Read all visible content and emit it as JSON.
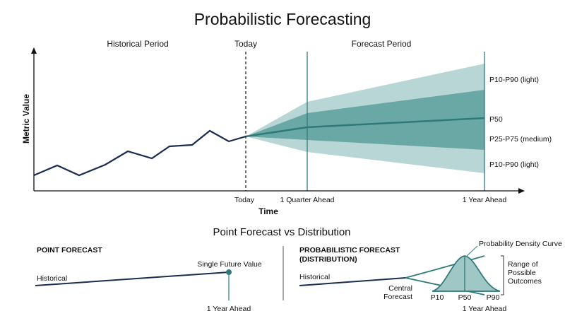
{
  "title": "Probabilistic Forecasting",
  "main_chart": {
    "section_labels": {
      "historical": "Historical Period",
      "today": "Today",
      "forecast": "Forecast Period"
    },
    "y_axis_label": "Metric Value",
    "x_axis_label": "Time",
    "x_ticks": [
      "Today",
      "1 Quarter Ahead",
      "1 Year Ahead"
    ],
    "band_labels": {
      "p10_p90_top": "P10-P90 (light)",
      "p50": "P50",
      "p25_p75": "P25-P75 (medium)",
      "p10_p90_bottom": "P10-P90 (light)"
    },
    "colors": {
      "history_line": "#1b2d4f",
      "outer_band": "#b9d6d6",
      "inner_band": "#6aa8a6",
      "median_line": "#2f7a79",
      "marker_line": "#2f7a79"
    }
  },
  "comparison": {
    "title": "Point Forecast vs Distribution",
    "point_panel": {
      "heading": "POINT FORECAST",
      "historical_label": "Historical",
      "value_label": "Single Future Value",
      "x_label": "1 Year Ahead"
    },
    "distribution_panel": {
      "heading_line1": "PROBABILISTIC FORECAST",
      "heading_line2": "(DISTRIBUTION)",
      "historical_label": "Historical",
      "central_line1": "Central",
      "central_line2": "Forecast",
      "density_label": "Probability Density Curve",
      "range_line1": "Range of",
      "range_line2": "Possible",
      "range_line3": "Outcomes",
      "percentiles": [
        "P10",
        "P50",
        "P90"
      ],
      "x_label": "1 Year Ahead"
    }
  }
}
